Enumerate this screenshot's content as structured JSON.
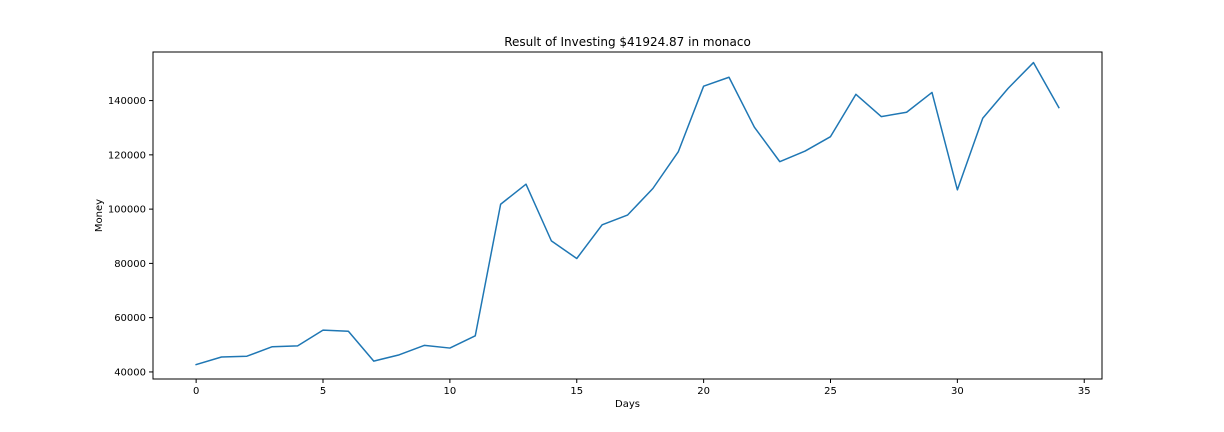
{
  "chart_data": {
    "type": "line",
    "title": "Result of Investing $41924.87 in monaco",
    "xlabel": "Days",
    "ylabel": "Money",
    "xlim": [
      -1.7,
      35.7
    ],
    "ylim": [
      37400,
      157900
    ],
    "xticks": [
      0,
      5,
      10,
      15,
      20,
      25,
      30,
      35
    ],
    "yticks": [
      40000,
      60000,
      80000,
      100000,
      120000,
      140000
    ],
    "grid": false,
    "series": [
      {
        "name": "Money",
        "color": "#1f77b4",
        "x": [
          0,
          1,
          2,
          3,
          4,
          5,
          6,
          7,
          8,
          9,
          10,
          11,
          12,
          13,
          14,
          15,
          16,
          17,
          18,
          19,
          20,
          21,
          22,
          23,
          24,
          25,
          26,
          27,
          28,
          29,
          30,
          31,
          32,
          33,
          34
        ],
        "values": [
          42700,
          45500,
          45800,
          49300,
          49600,
          55400,
          55000,
          44000,
          46300,
          49800,
          48800,
          53300,
          101800,
          109200,
          88300,
          81800,
          94200,
          97800,
          107600,
          121100,
          145300,
          148600,
          130200,
          117500,
          121400,
          126700,
          142300,
          134100,
          135700,
          143000,
          107100,
          133500,
          144500,
          154000,
          137400
        ]
      }
    ]
  }
}
